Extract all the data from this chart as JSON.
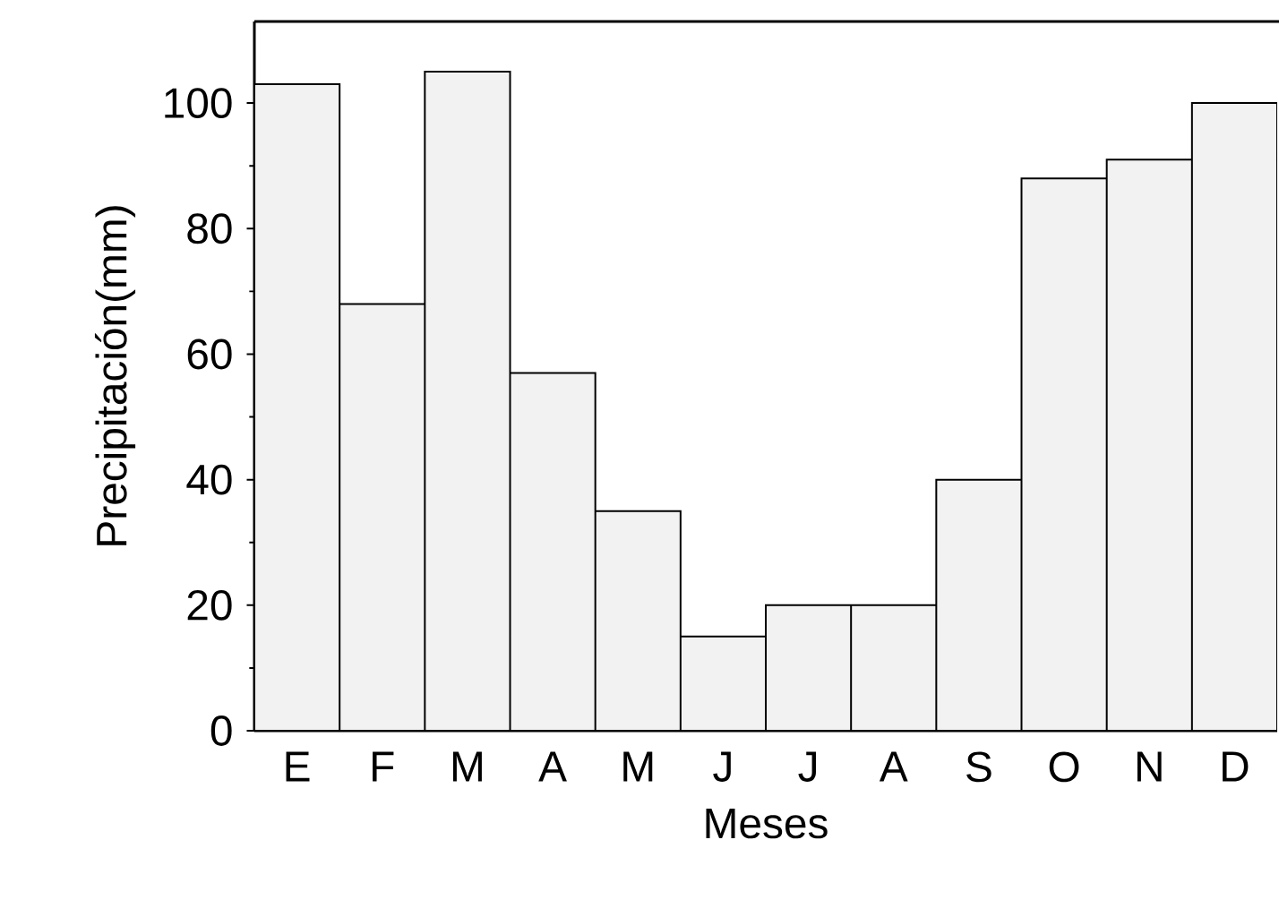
{
  "chart_data": {
    "type": "bar",
    "xlabel": "Meses",
    "ylabel": "Precipitación(mm)",
    "categories": [
      "E",
      "F",
      "M",
      "A",
      "M",
      "J",
      "J",
      "A",
      "S",
      "O",
      "N",
      "D"
    ],
    "values": [
      103,
      68,
      105,
      57,
      35,
      15,
      20,
      20,
      40,
      88,
      91,
      100
    ],
    "color": "#f2f2f2",
    "ylim": [
      0,
      113
    ],
    "yticks": [
      0,
      20,
      40,
      60,
      80,
      100
    ]
  }
}
